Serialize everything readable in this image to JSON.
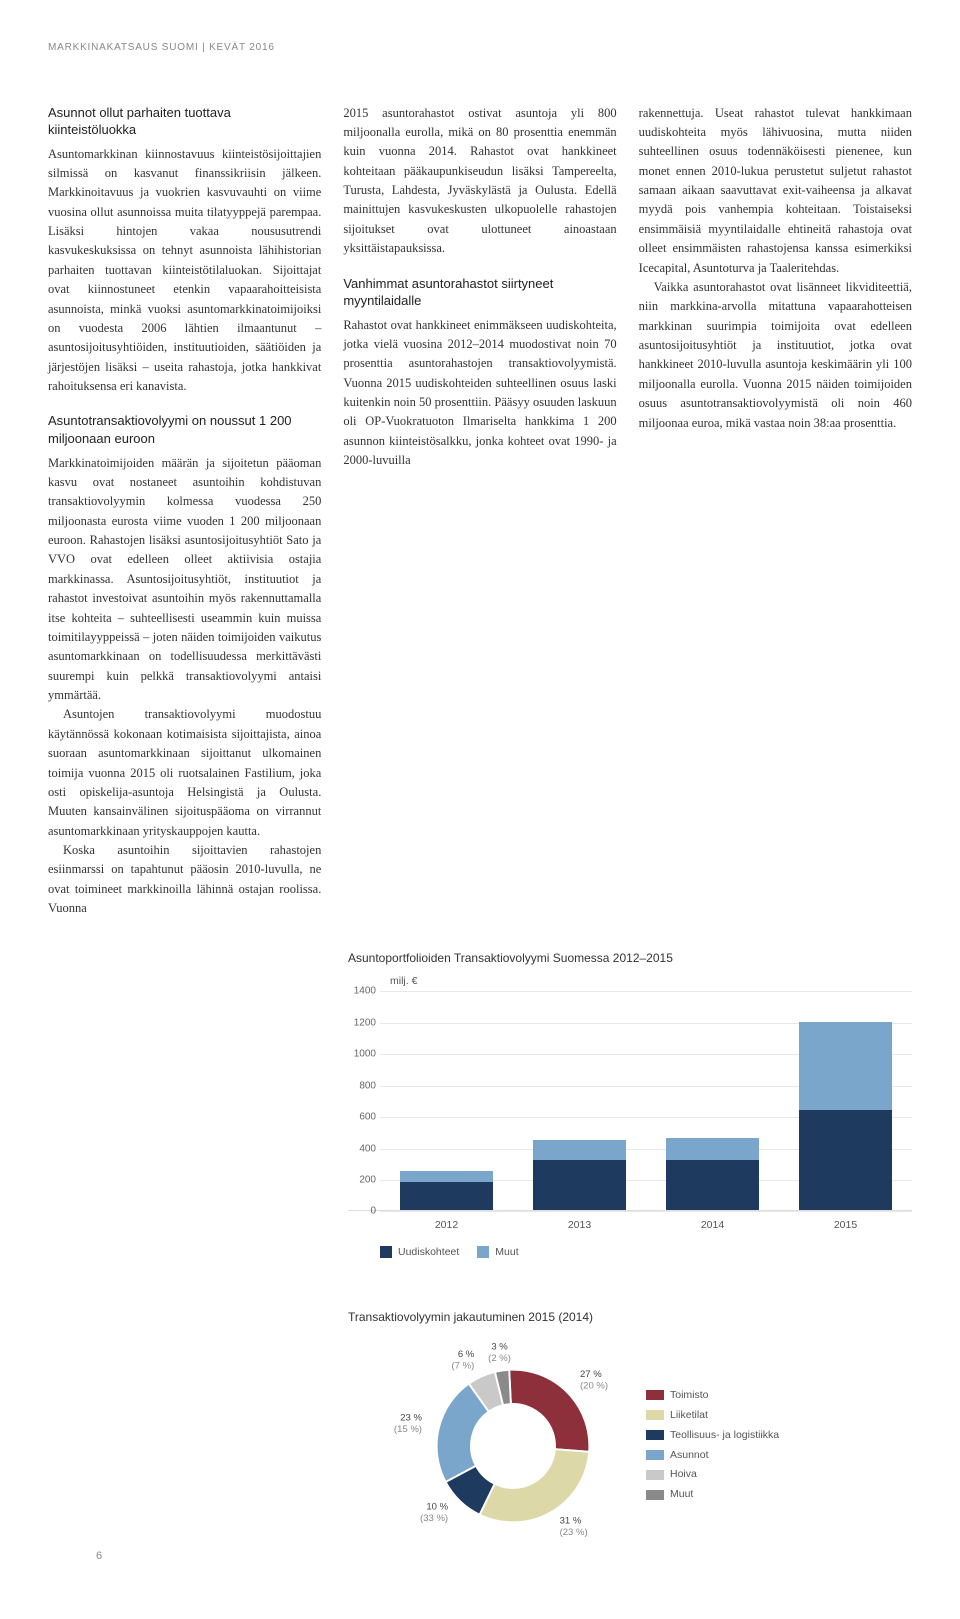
{
  "header": "MARKKINAKATSAUS SUOMI | KEVÄT 2016",
  "page_number": "6",
  "col1": {
    "h1": "Asunnot ollut parhaiten tuottava kiinteistöluokka",
    "p1a": "Asuntomarkkinan kiinnostavuus kiinteistösijoittajien silmissä on kasvanut finanssikriisin jälkeen. Markkinoitavuus ja vuokrien kasvuvauhti on viime vuosina ollut asunnoissa muita tilatyyppejä parempaa. Lisäksi hintojen vakaa noususutrendi kasvukeskuksissa on tehnyt asunnoista lähihistorian parhaiten tuottavan kiinteistötilaluokan. Sijoittajat ovat kiinnostuneet etenkin vapaarahoitteisista asunnoista, minkä vuoksi asuntomarkkinatoimijoiksi on vuodesta 2006 lähtien ilmaantunut – asuntosijoitusyhtiöiden, instituutioiden, säätiöiden ja järjestöjen lisäksi – useita rahastoja, jotka hankkivat rahoituksensa eri kanavista.",
    "h2": "Asuntotransaktiovolyymi on noussut 1 200 miljoonaan euroon",
    "p2a": "Markkinatoimijoiden määrän ja sijoitetun pääoman kasvu ovat nostaneet asuntoihin kohdistuvan transaktiovolyymin kolmessa vuodessa 250 miljoonasta eurosta viime vuoden 1 200 miljoonaan euroon. Rahastojen lisäksi asuntosijoitusyhtiöt Sato ja VVO ovat edelleen olleet aktiivisia ostajia markkinassa. Asuntosijoitusyhtiöt, instituutiot ja rahastot investoivat asuntoihin myös rakennuttamalla itse kohteita – suhteellisesti useammin kuin muissa toimitilayyppeissä – joten näiden toimijoiden vaikutus asuntomarkkinaan on todellisuudessa merkittävästi suurempi kuin pelkkä transaktiovolyymi antaisi ymmärtää.",
    "p2b": "Asuntojen transaktiovolyymi muodostuu käytännössä kokonaan kotimaisista sijoittajista, ainoa suoraan asuntomarkkinaan sijoittanut ulkomainen toimija vuonna 2015 oli ruotsalainen Fastilium, joka osti opiskelija-asuntoja Helsingistä ja Oulusta. Muuten kansainvälinen sijoituspääoma on virrannut asuntomarkkinaan yrityskauppojen kautta.",
    "p2c": "Koska asuntoihin sijoittavien rahastojen esiinmarssi on tapahtunut pääosin 2010-luvulla, ne ovat toimineet markkinoilla lähinnä ostajan roolissa. Vuonna"
  },
  "col2": {
    "p1": "2015 asuntorahastot ostivat asuntoja yli 800 miljoonalla eurolla, mikä on 80 prosenttia enemmän kuin vuonna 2014. Rahastot ovat hankkineet kohteitaan pääkaupunkiseudun lisäksi Tampereelta, Turusta, Lahdesta, Jyväskylästä ja Oulusta. Edellä mainittujen kasvukeskusten ulkopuolelle rahastojen sijoitukset ovat ulottuneet ainoastaan yksittäistapauksissa.",
    "h2": "Vanhimmat asuntorahastot siirtyneet myyntilaidalle",
    "p2": "Rahastot ovat hankkineet enimmäkseen uudiskohteita, jotka vielä vuosina 2012–2014 muodostivat noin 70 prosenttia asuntorahastojen transaktiovolyymistä. Vuonna 2015 uudiskohteiden suhteellinen osuus laski kuitenkin noin 50 prosenttiin. Pääsyy osuuden laskuun oli OP-Vuokratuoton Ilmariselta hankkima 1 200 asunnon kiinteistösalkku, jonka kohteet ovat 1990- ja 2000-luvuilla"
  },
  "col3": {
    "p1": "rakennettuja. Useat rahastot tulevat hankkimaan uudiskohteita myös lähivuosina, mutta niiden suhteellinen osuus todennäköisesti pienenee, kun monet ennen 2010-lukua perustetut suljetut rahastot samaan aikaan saavuttavat exit-vaiheensa ja alkavat myydä pois vanhempia kohteitaan. Toistaiseksi ensimmäisiä myyntilaidalle ehtineitä rahastoja ovat olleet ensimmäisten rahastojensa kanssa esimerkiksi Icecapital, Asuntoturva ja Taaleritehdas.",
    "p2": "Vaikka asuntorahastot ovat lisänneet likviditeettiä, niin markkina-arvolla mitattuna vapaarahotteisen markkinan suurimpia toimijoita ovat edelleen asuntosijoitusyhtiöt ja instituutiot, jotka ovat hankkineet 2010-luvulla asuntoja keskimäärin yli 100 miljoonalla eurolla. Vuonna 2015 näiden toimijoiden osuus asuntotransaktiovolyymistä oli noin 460 miljoonaa euroa, mikä vastaa noin 38:aa prosenttia."
  },
  "bar_chart": {
    "title": "Asuntoportfolioiden Transaktiovolyymi Suomessa 2012–2015",
    "unit_label": "milj. €",
    "y_max": 1400,
    "y_tick": 200,
    "categories": [
      "2012",
      "2013",
      "2014",
      "2015"
    ],
    "series": [
      {
        "name": "Uudiskohteet",
        "color": "#1f3a5f",
        "values": [
          180,
          320,
          320,
          640
        ]
      },
      {
        "name": "Muut",
        "color": "#7aa6cc",
        "values": [
          70,
          130,
          140,
          560
        ]
      }
    ],
    "legend": [
      "Uudiskohteet",
      "Muut"
    ]
  },
  "pie_chart": {
    "title": "Transaktiovolyymin jakautuminen 2015 (2014)",
    "slices": [
      {
        "label": "Toimisto",
        "color": "#8e2f3c",
        "pct": 27,
        "prev": 20
      },
      {
        "label": "Liiketilat",
        "color": "#dcd8a7",
        "pct": 31,
        "prev": 23
      },
      {
        "label": "Teollisuus- ja logistiikka",
        "color": "#1f3a5f",
        "pct": 10,
        "prev": 33
      },
      {
        "label": "Asunnot",
        "color": "#7aa6cc",
        "pct": 23,
        "prev": 15
      },
      {
        "label": "Hoiva",
        "color": "#c9c9c9",
        "pct": 6,
        "prev": 7
      },
      {
        "label": "Muut",
        "color": "#8a8a8a",
        "pct": 3,
        "prev": 2
      }
    ],
    "inner_radius": 0.55,
    "label_fontsize": 10
  }
}
